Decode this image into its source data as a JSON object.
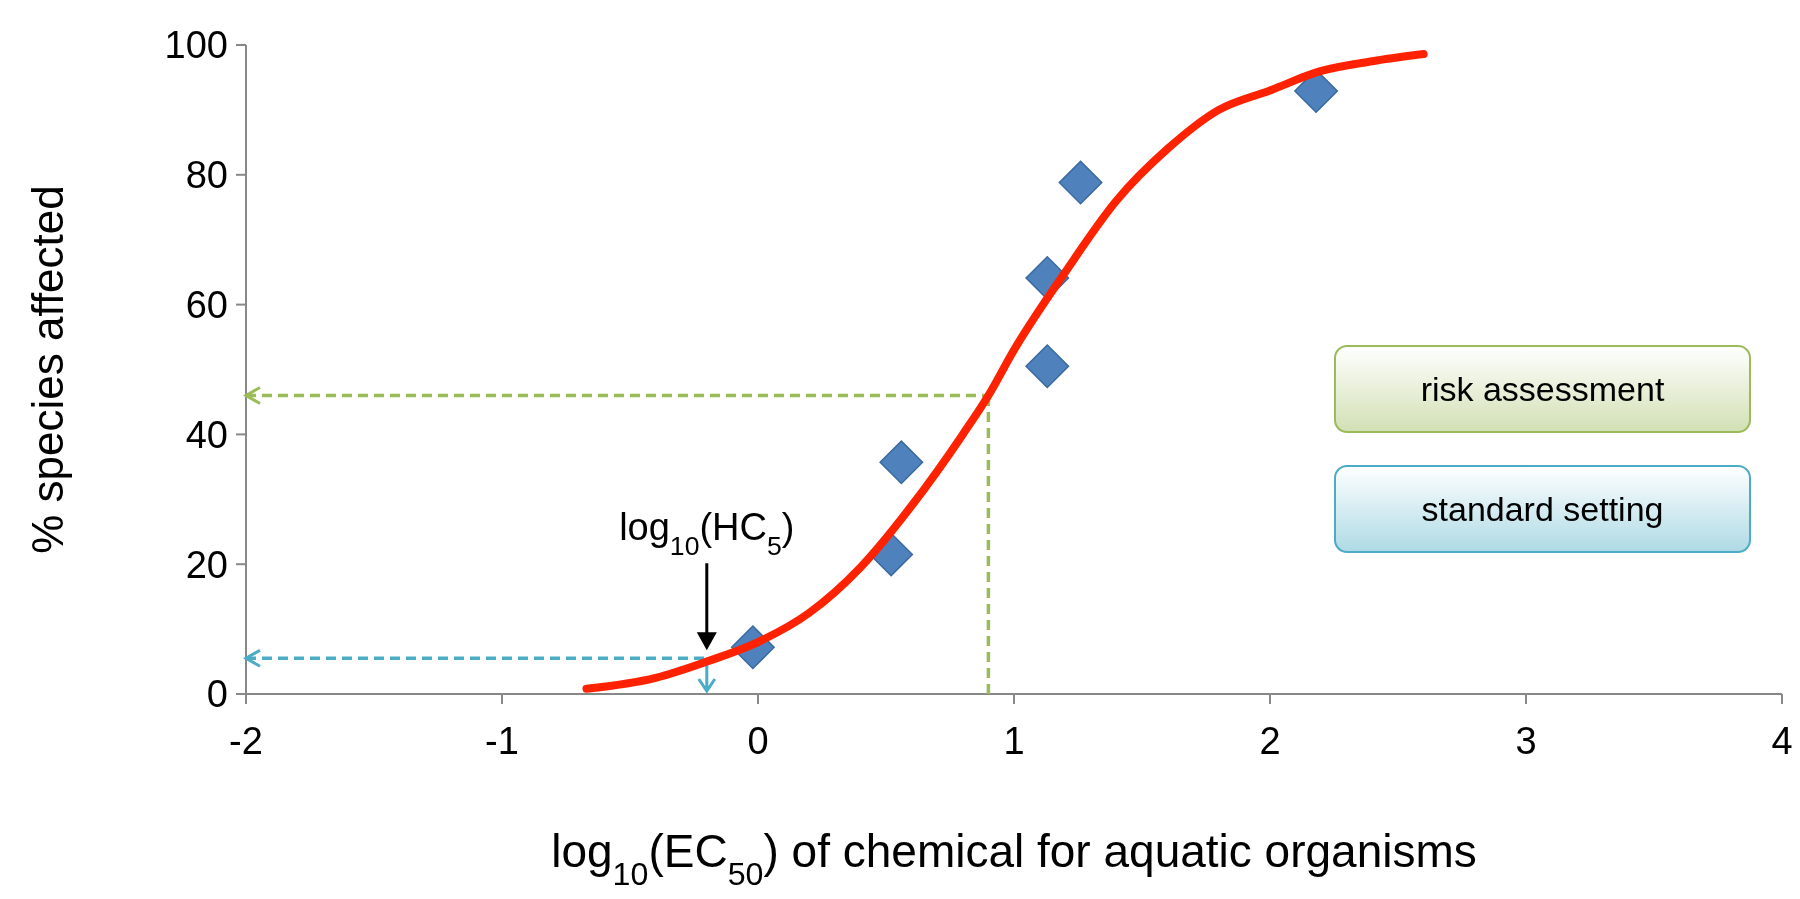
{
  "chart_data": {
    "type": "scatter",
    "xlabel": "log$_{10}$(EC$_{50}$) of chemical for aquatic organisms",
    "ylabel": "% species affected",
    "xlim": [
      -2,
      4
    ],
    "ylim": [
      0,
      100
    ],
    "xticks": [
      -2,
      -1,
      0,
      1,
      2,
      3,
      4
    ],
    "yticks": [
      0,
      20,
      40,
      60,
      80,
      100
    ],
    "grid": false,
    "series": [
      {
        "type": "line",
        "color": "#ff2200",
        "line_style": "solid",
        "x": [
          -0.67,
          -0.4,
          -0.2,
          0,
          0.2,
          0.4,
          0.6,
          0.8,
          0.9,
          1.0,
          1.2,
          1.4,
          1.6,
          1.8,
          2.0,
          2.2,
          2.4,
          2.6
        ],
        "values": [
          0.8,
          2.5,
          5,
          8,
          12.5,
          19.5,
          29,
          40,
          46,
          53,
          65,
          76,
          84,
          90,
          93,
          96,
          97.5,
          98.6
        ]
      },
      {
        "color": "#4f81bd",
        "marker": "diamond",
        "x": [
          -0.02,
          0.52,
          0.56,
          1.13,
          1.13,
          1.26,
          2.18
        ],
        "values": [
          7.2,
          21.5,
          35.7,
          50.5,
          64.1,
          78.8,
          92.9
        ]
      }
    ],
    "ref_lines": [
      {
        "axis": "y",
        "value": 46,
        "color": "#9bbb59",
        "line_style": "dashed"
      },
      {
        "axis": "x",
        "value": 0.9,
        "color": "#9bbb59",
        "line_style": "dashed"
      },
      {
        "axis": "y",
        "value": 5.5,
        "color": "#4bacc6",
        "line_style": "dashed"
      }
    ],
    "annotations": [
      {
        "text": "log$_{10}$(HC$_{5}$)",
        "x": -0.2,
        "y": 5.5
      },
      "risk assessment",
      "standard setting"
    ]
  }
}
